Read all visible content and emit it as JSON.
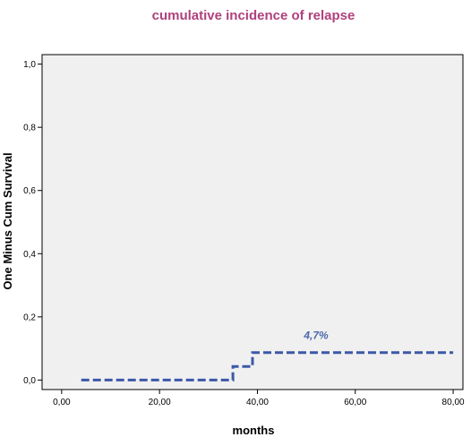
{
  "chart_data": {
    "type": "line",
    "subtype": "step",
    "title": "cumulative incidence of relapse",
    "xlabel": "months",
    "ylabel": "One Minus Cum Survival",
    "xlim": [
      -4,
      82
    ],
    "ylim": [
      -0.03,
      1.03
    ],
    "xticks": [
      "0,00",
      "20,00",
      "40,00",
      "60,00",
      "80,00"
    ],
    "xtick_values": [
      0,
      20,
      40,
      60,
      80
    ],
    "yticks": [
      "0,0",
      "0,2",
      "0,4",
      "0,6",
      "0,8",
      "1,0"
    ],
    "ytick_values": [
      0,
      0.2,
      0.4,
      0.6,
      0.8,
      1.0
    ],
    "grid": false,
    "series": [
      {
        "x": [
          4,
          35,
          35,
          39,
          39,
          80
        ],
        "y": [
          0,
          0,
          0.043,
          0.043,
          0.087,
          0.087
        ],
        "color": "#3c58a8",
        "dash": true
      }
    ],
    "annotations": [
      {
        "text": "4,7%",
        "x": 52,
        "y": 0.13,
        "color": "#4a6aa8"
      }
    ],
    "colors": {
      "title": "#b0407c",
      "plot_background": "#f0f0f0",
      "line": "#3c58a8",
      "annotation": "#4a6aa8"
    }
  }
}
